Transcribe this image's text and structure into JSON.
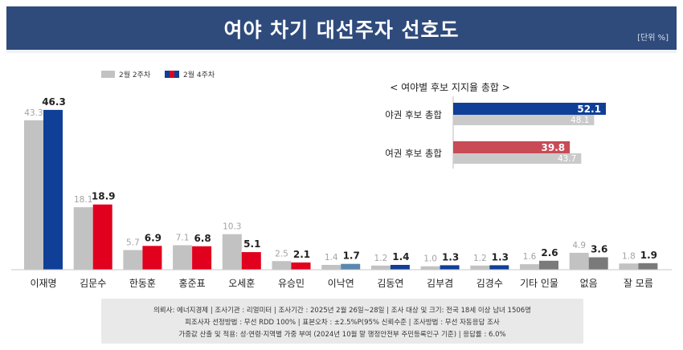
{
  "header": {
    "title": "여야 차기 대선주자 선호도",
    "unit": "[단위 %]"
  },
  "legend": {
    "period1": "2월 2주차",
    "period2": "2월 4주차"
  },
  "colors": {
    "header_bg": "#2f4b7c",
    "gray": "#c2c2c2",
    "gray_light": "#cacaca",
    "blue": "#0f3f97",
    "red": "#e1001d",
    "teal": "#5a88b0",
    "dark_gray": "#7a7a7a",
    "summary_blue": "#0f3f97",
    "summary_red": "#c84b55"
  },
  "chart_data": [
    {
      "type": "bar",
      "title": "",
      "categories": [
        "이재명",
        "김문수",
        "한동훈",
        "홍준표",
        "오세훈",
        "유승민",
        "이낙연",
        "김동연",
        "김부겸",
        "김경수",
        "기타 인물",
        "없음",
        "잘 모름"
      ],
      "series": [
        {
          "name": "2월 2주차",
          "values": [
            43.3,
            18.1,
            5.7,
            7.1,
            10.3,
            2.5,
            1.4,
            1.2,
            1.0,
            1.2,
            1.6,
            4.9,
            1.8
          ]
        },
        {
          "name": "2월 4주차",
          "values": [
            46.3,
            18.9,
            6.9,
            6.8,
            5.1,
            2.1,
            1.7,
            1.4,
            1.3,
            1.3,
            2.6,
            3.6,
            1.9
          ]
        }
      ],
      "ylim": [
        0,
        50
      ]
    },
    {
      "type": "bar",
      "title": "< 여야별 후보 지지율 총합 >",
      "categories": [
        "야권 후보 총합",
        "여권 후보 총합"
      ],
      "series": [
        {
          "name": "2월 4주차",
          "values": [
            52.1,
            39.8
          ]
        },
        {
          "name": "2월 2주차",
          "values": [
            48.1,
            43.7
          ]
        }
      ],
      "xlim": [
        0,
        60
      ]
    }
  ],
  "footer": {
    "line1": "의뢰사: 에너지경제 | 조사기관 : 리얼미터 | 조사기간 : 2025년 2월 26일~28일 | 조사 대상 및 크기: 전국 18세 이상 남녀 1506명",
    "line2": "피조사자 선정방법 : 무선 RDD 100% | 표본오차 : ±2.5%P(95% 신뢰수준 | 조사방법 : 무선 자동응답 조사",
    "line3": "가중값 산출 및 적용: 성·연령·지역별 가중 부여 (2024년 10월 말 행정안전부 주민등록인구 기준) | 응답률 : 6.0%"
  }
}
